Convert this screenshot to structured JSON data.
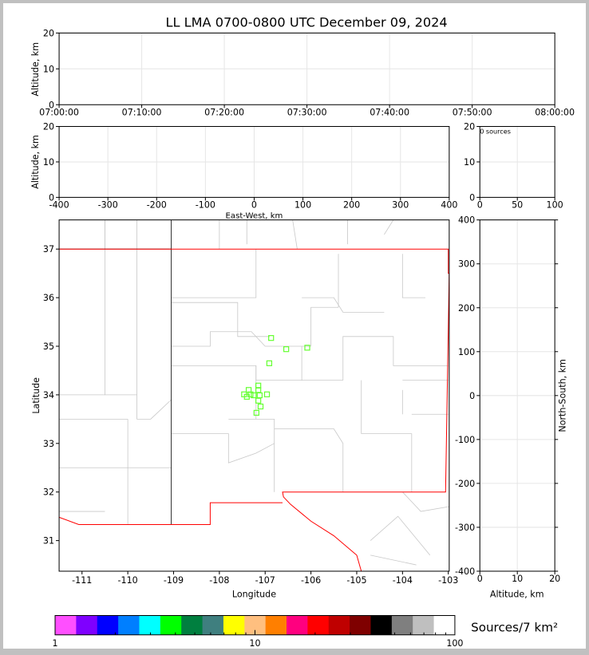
{
  "chart_data": [
    {
      "panel": "altitude-time",
      "type": "scatter",
      "title": "LL LMA 0700-0800 UTC December 09, 2024",
      "ylabel": "Altitude, km",
      "ylim": [
        0,
        20
      ],
      "yticks": [
        "0",
        "10",
        "20"
      ],
      "xticks": [
        "07:00:00",
        "07:10:00",
        "07:20:00",
        "07:30:00",
        "07:40:00",
        "07:50:00",
        "08:00:00"
      ],
      "grid": true,
      "points": []
    },
    {
      "panel": "altitude-eastwest",
      "type": "scatter",
      "xlabel": "East-West, km",
      "ylabel": "Altitude, km",
      "xlim": [
        -400,
        400
      ],
      "ylim": [
        0,
        20
      ],
      "xticks": [
        "-400",
        "-300",
        "-200",
        "-100",
        "0",
        "100",
        "200",
        "300",
        "400"
      ],
      "yticks": [
        "0",
        "10",
        "20"
      ],
      "grid": true,
      "points": []
    },
    {
      "panel": "altitude-histogram",
      "type": "bar",
      "annotation": "0 sources",
      "xlim": [
        0,
        100
      ],
      "ylim": [
        0,
        20
      ],
      "xticks": [
        "0",
        "50",
        "100"
      ],
      "yticks": [
        "0",
        "10",
        "20"
      ],
      "grid": true,
      "values": []
    },
    {
      "panel": "plan-view",
      "type": "scatter",
      "xlabel": "Longitude",
      "ylabel": "Latitude",
      "xlim": [
        -111.5,
        -102.98
      ],
      "ylim": [
        30.37,
        37.6
      ],
      "xticks": [
        "-111",
        "-110",
        "-109",
        "-108",
        "-107",
        "-106",
        "-105",
        "-104",
        "-103"
      ],
      "yticks": [
        "31",
        "32",
        "33",
        "34",
        "35",
        "36",
        "37"
      ],
      "marker_color": "#66ff33",
      "points": [
        [
          -106.87,
          35.17
        ],
        [
          -106.54,
          34.94
        ],
        [
          -106.08,
          34.97
        ],
        [
          -106.91,
          34.65
        ],
        [
          -107.15,
          34.19
        ],
        [
          -107.36,
          34.1
        ],
        [
          -107.15,
          34.1
        ],
        [
          -107.46,
          34.01
        ],
        [
          -107.32,
          34.01
        ],
        [
          -106.96,
          34.01
        ],
        [
          -107.25,
          33.99
        ],
        [
          -107.12,
          33.99
        ],
        [
          -107.4,
          33.96
        ],
        [
          -107.15,
          33.88
        ],
        [
          -107.1,
          33.76
        ],
        [
          -107.19,
          33.63
        ]
      ]
    },
    {
      "panel": "northsouth-altitude",
      "type": "scatter",
      "xlabel": "Altitude, km",
      "ylabel": "North-South, km",
      "xlim": [
        0,
        20
      ],
      "ylim": [
        -400,
        400
      ],
      "xticks": [
        "0",
        "10",
        "20"
      ],
      "yticks": [
        "-400",
        "-300",
        "-200",
        "-100",
        "0",
        "100",
        "200",
        "300",
        "400"
      ],
      "grid": true,
      "points": []
    },
    {
      "panel": "colorbar",
      "type": "heatmap",
      "label": "Sources/7 km²",
      "scale": "log",
      "range": [
        1,
        100
      ],
      "ticks": [
        "1",
        "10",
        "100"
      ],
      "colors": [
        "#ff4fff",
        "#7f00ff",
        "#0000ff",
        "#007fff",
        "#00ffff",
        "#00ff00",
        "#007f3f",
        "#3f7f7f",
        "#ffff00",
        "#ffbf7f",
        "#ff7f00",
        "#ff007f",
        "#ff0000",
        "#bf0000",
        "#7f0000",
        "#000000",
        "#7f7f7f",
        "#bfbfbf",
        "#ffffff"
      ]
    }
  ]
}
